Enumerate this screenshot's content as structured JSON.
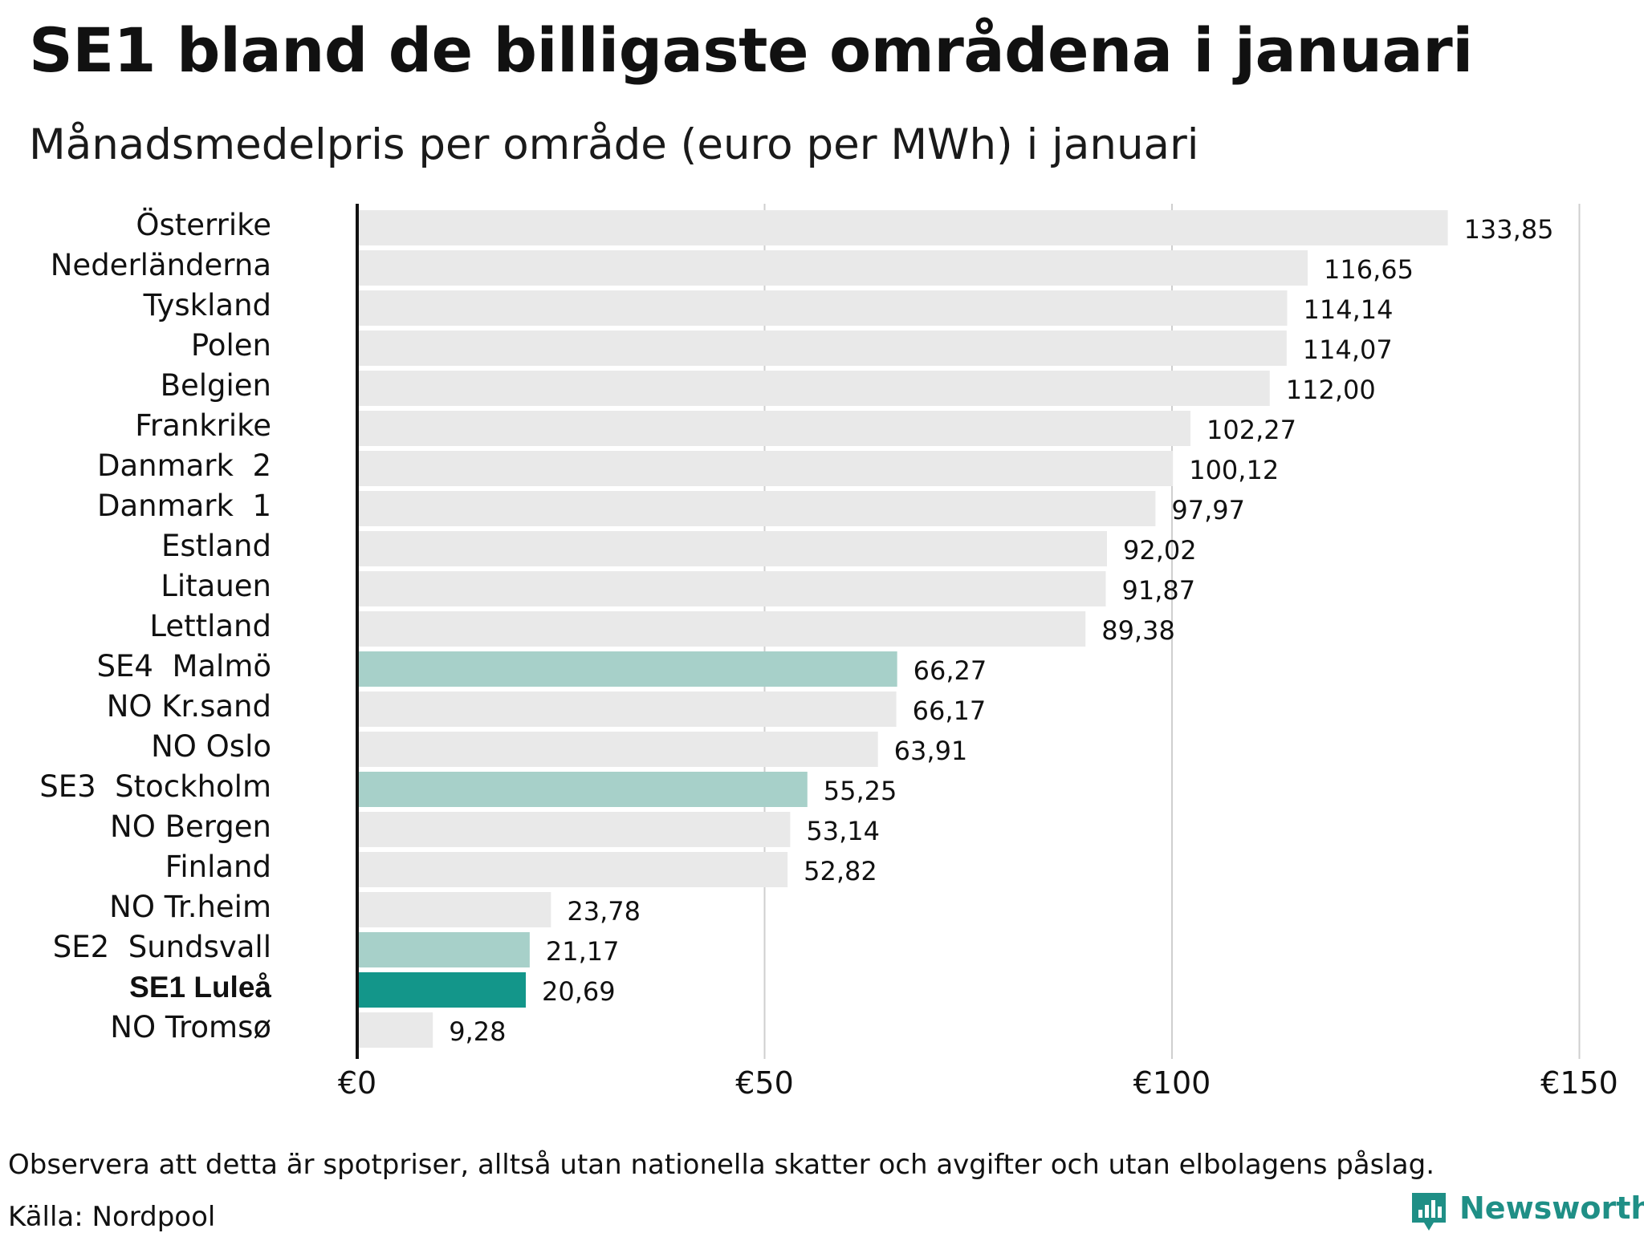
{
  "title": "SE1 bland de billigaste områdena i januari",
  "subtitle": "Månadsmedelpris per område (euro per MWh) i januari",
  "note": "Observera att detta är spotpriser, alltså utan nationella skatter och avgifter och utan elbolagens påslag.",
  "source": "Källa: Nordpool",
  "brand": {
    "name": "Newsworthy",
    "icon": "newsworthy-logo-icon",
    "color": "#1f8f86"
  },
  "colors": {
    "default_bar": "#e9e9e9",
    "swedish_bar": "#a7d0c9",
    "highlight_bar": "#13968a",
    "gridline": "#cfcfcf",
    "axis": "#111111"
  },
  "chart_data": {
    "type": "bar",
    "orientation": "horizontal",
    "categories": [
      "Österrike",
      "Nederländerna",
      "Tyskland",
      "Polen",
      "Belgien",
      "Frankrike",
      "Danmark  2",
      "Danmark  1",
      "Estland",
      "Litauen",
      "Lettland",
      "SE4  Malmö",
      "NO Kr.sand",
      "NO Oslo",
      "SE3  Stockholm",
      "NO Bergen",
      "Finland",
      "NO Tr.heim",
      "SE2  Sundsvall",
      "SE1 Luleå",
      "NO Tromsø"
    ],
    "values": [
      133.85,
      116.65,
      114.14,
      114.07,
      112.0,
      102.27,
      100.12,
      97.97,
      92.02,
      91.87,
      89.38,
      66.27,
      66.17,
      63.91,
      55.25,
      53.14,
      52.82,
      23.78,
      21.17,
      20.69,
      9.28
    ],
    "value_labels": [
      "133,85",
      "116,65",
      "114,14",
      "114,07",
      "112,00",
      "102,27",
      "100,12",
      "97,97",
      "92,02",
      "91,87",
      "89,38",
      "66,27",
      "66,17",
      "63,91",
      "55,25",
      "53,14",
      "52,82",
      "23,78",
      "21,17",
      "20,69",
      "9,28"
    ],
    "highlight": [
      "default",
      "default",
      "default",
      "default",
      "default",
      "default",
      "default",
      "default",
      "default",
      "default",
      "default",
      "swedish",
      "default",
      "default",
      "swedish",
      "default",
      "default",
      "default",
      "swedish",
      "highlight",
      "default"
    ],
    "bold_labels": [
      "SE1 Luleå"
    ],
    "xlim": [
      0,
      150
    ],
    "xticks": [
      0,
      50,
      100,
      150
    ],
    "xtick_labels": [
      "€0",
      "€50",
      "€100",
      "€150"
    ],
    "grid": true,
    "legend": false
  }
}
